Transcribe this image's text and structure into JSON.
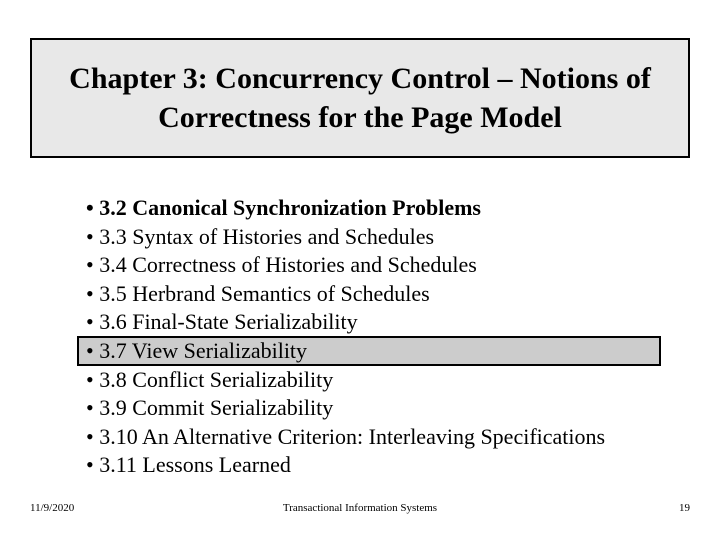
{
  "title": "Chapter 3: Concurrency Control – Notions of Correctness for the Page Model",
  "bullets": [
    {
      "text": "• 3.2 Canonical Synchronization Problems",
      "bold": true
    },
    {
      "text": "• 3.3 Syntax of Histories and Schedules",
      "bold": false
    },
    {
      "text": "• 3.4 Correctness of Histories and Schedules",
      "bold": false
    },
    {
      "text": "• 3.5 Herbrand Semantics of Schedules",
      "bold": false
    },
    {
      "text": "• 3.6 Final-State Serializability",
      "bold": false
    },
    {
      "text": "• 3.7 View Serializability",
      "bold": false
    },
    {
      "text": "• 3.8 Conflict Serializability",
      "bold": false
    },
    {
      "text": "• 3.9 Commit Serializability",
      "bold": false
    },
    {
      "text": "• 3.10 An Alternative Criterion: Interleaving Specifications",
      "bold": false
    },
    {
      "text": "• 3.11 Lessons Learned",
      "bold": false
    }
  ],
  "highlighted_index": 5,
  "footer": {
    "date": "11/9/2020",
    "center": "Transactional Information Systems",
    "page": "19"
  },
  "styles": {
    "title_bg": "#e8e8e8",
    "title_border": "#000000",
    "highlight_bg": "#cccccc",
    "highlight_border": "#000000",
    "text_color": "#000000",
    "page_bg": "#ffffff",
    "title_fontsize": 30,
    "bullet_fontsize": 22,
    "footer_fontsize": 11
  }
}
